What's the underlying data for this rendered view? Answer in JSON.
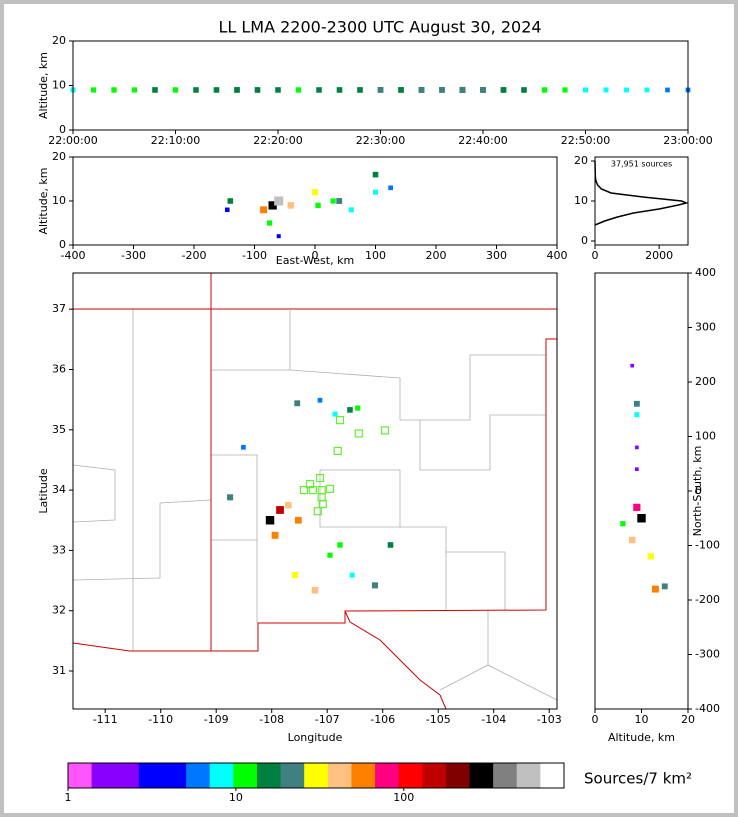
{
  "chart_data": [
    {
      "type": "scatter",
      "title": "LL LMA 2200-2300 UTC August 30, 2024",
      "ylabel": "Altitude, km",
      "xlim": [
        0,
        60
      ],
      "ylim": [
        0,
        20
      ],
      "xticks": [
        {
          "value": 0,
          "label": "22:00:00"
        },
        {
          "value": 10,
          "label": "22:10:00"
        },
        {
          "value": 20,
          "label": "22:20:00"
        },
        {
          "value": 30,
          "label": "22:30:00"
        },
        {
          "value": 40,
          "label": "22:40:00"
        },
        {
          "value": 50,
          "label": "22:50:00"
        },
        {
          "value": 60,
          "label": "23:00:00"
        }
      ],
      "yticks": [
        0,
        10,
        20
      ],
      "x": [
        0,
        2,
        4,
        6,
        8,
        10,
        12,
        14,
        16,
        18,
        20,
        22,
        24,
        26,
        28,
        30,
        32,
        34,
        36,
        38,
        40,
        42,
        44,
        46,
        48,
        50,
        52,
        54,
        56,
        58,
        60
      ],
      "values": [
        9,
        9,
        9,
        9,
        9,
        9,
        9,
        9,
        9,
        9,
        9,
        9,
        9,
        9,
        9,
        9,
        9,
        9,
        9,
        9,
        9,
        9,
        9,
        9,
        9,
        9,
        9,
        9,
        9,
        9,
        9
      ],
      "density": [
        8,
        10,
        12,
        10,
        15,
        12,
        14,
        15,
        18,
        16,
        14,
        12,
        14,
        15,
        16,
        20,
        18,
        22,
        20,
        25,
        22,
        18,
        15,
        12,
        10,
        8,
        8,
        7,
        7,
        6,
        6
      ]
    },
    {
      "type": "scatter",
      "xlabel": "East-West, km",
      "ylabel": "Altitude, km",
      "xlim": [
        -400,
        400
      ],
      "ylim": [
        0,
        20
      ],
      "xticks": [
        -400,
        -300,
        -200,
        -100,
        0,
        100,
        200,
        300,
        400
      ],
      "yticks": [
        0,
        10,
        20
      ],
      "x": [
        -140,
        -145,
        -70,
        -60,
        -85,
        -40,
        0,
        5,
        30,
        60,
        40,
        100,
        100,
        125,
        -75,
        -60
      ],
      "values": [
        10,
        8,
        9,
        10,
        8,
        9,
        12,
        9,
        10,
        8,
        10,
        16,
        12,
        13,
        5,
        2
      ],
      "density": [
        15,
        5,
        250,
        600,
        60,
        40,
        30,
        12,
        10,
        8,
        20,
        15,
        8,
        6,
        10,
        3
      ]
    },
    {
      "type": "line",
      "annotation": "37,951 sources",
      "xlim": [
        0,
        2900
      ],
      "ylim": [
        -1,
        21
      ],
      "xticks": [
        0,
        2000
      ],
      "yticks": [
        0,
        10,
        20
      ],
      "x": [
        0,
        300,
        700,
        1200,
        2000,
        2600,
        2850,
        2700,
        1500,
        500,
        200,
        80,
        30,
        10,
        0
      ],
      "values": [
        4,
        5,
        6,
        7,
        8,
        9,
        9.5,
        10,
        11,
        12,
        13,
        14,
        15,
        16,
        20
      ]
    },
    {
      "type": "map",
      "xlabel": "Longitude",
      "ylabel": "Latitude",
      "xlim": [
        -111.58,
        -102.86
      ],
      "ylim": [
        30.37,
        37.6
      ],
      "xticks": [
        -111,
        -110,
        -109,
        -108,
        -107,
        -106,
        -105,
        -104,
        -103
      ],
      "yticks": [
        31,
        32,
        33,
        34,
        35,
        36,
        37
      ],
      "x": [
        -107.54,
        -107.13,
        -106.59,
        -106.45,
        -106.86,
        -108.75,
        -108.03,
        -107.85,
        -107.7,
        -107.94,
        -107.58,
        -107.22,
        -106.77,
        -106.95,
        -106.14,
        -105.86,
        -108.51,
        -107.52,
        -106.55
      ],
      "values": [
        35.44,
        35.49,
        35.33,
        35.36,
        35.26,
        33.88,
        33.5,
        33.67,
        33.75,
        33.25,
        32.59,
        32.34,
        33.09,
        32.92,
        32.42,
        33.09,
        34.71,
        33.5,
        32.59
      ],
      "density": [
        20,
        6,
        15,
        10,
        8,
        25,
        300,
        150,
        40,
        60,
        30,
        40,
        12,
        10,
        25,
        15,
        6,
        50,
        8
      ],
      "stations": {
        "color": "#66ee33",
        "x": [
          -107.42,
          -107.31,
          -107.13,
          -107.1,
          -106.95,
          -107.1,
          -107.08,
          -107.17,
          -106.77,
          -106.43,
          -105.96,
          -106.81,
          -107.26
        ],
        "values": [
          34.0,
          34.1,
          34.2,
          34.0,
          34.02,
          33.88,
          33.77,
          33.65,
          35.16,
          34.94,
          34.99,
          34.65,
          34.0
        ]
      }
    },
    {
      "type": "scatter",
      "xlabel": "Altitude, km",
      "ylabel": "North-South, km",
      "y_axis_side": "right",
      "xlim": [
        0,
        20
      ],
      "ylim": [
        -400,
        400
      ],
      "xticks": [
        0,
        10,
        20
      ],
      "yticks": [
        -400,
        -300,
        -200,
        -100,
        0,
        100,
        200,
        300,
        400
      ],
      "x": [
        9,
        9,
        10,
        9,
        8,
        12,
        13,
        15,
        6,
        8,
        9,
        9
      ],
      "values": [
        160,
        140,
        -50,
        -30,
        -90,
        -120,
        -180,
        -175,
        -60,
        230,
        40,
        80
      ],
      "density": [
        20,
        8,
        300,
        80,
        40,
        30,
        60,
        20,
        10,
        2,
        2,
        2
      ]
    },
    {
      "type": "colorbar",
      "label": "Sources/7 km²",
      "log": true,
      "xlim": [
        1,
        900
      ],
      "xticks": [
        1,
        10,
        100
      ],
      "colors": [
        "#ff55ff",
        "#8800ff",
        "#8800ff",
        "#0000ff",
        "#0000ff",
        "#0077ff",
        "#00ffff",
        "#00ff00",
        "#008040",
        "#408080",
        "#ffff00",
        "#ffc080",
        "#ff8000",
        "#ff0080",
        "#ff0000",
        "#c00000",
        "#800000",
        "#000000",
        "#808080",
        "#c0c0c0",
        "#ffffff"
      ]
    }
  ]
}
